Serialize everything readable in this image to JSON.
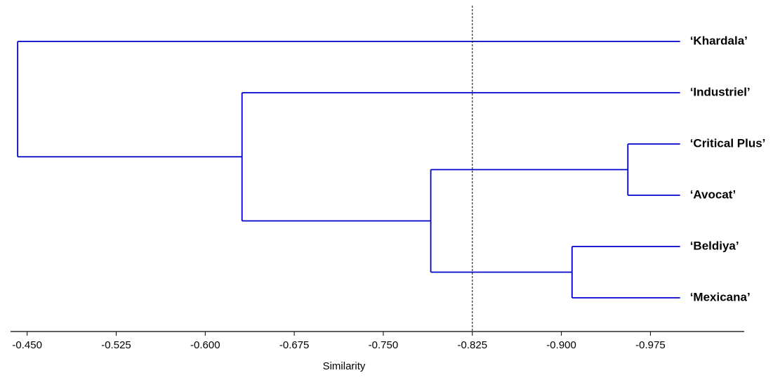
{
  "chart_data": {
    "type": "dendrogram",
    "xlabel": "Similarity",
    "leaves": [
      "‘Khardala’",
      "‘Industriel’",
      "‘Critical Plus’",
      "‘Avocat’",
      "‘Beldiya’",
      "‘Mexicana’"
    ],
    "leaf_value": -1.0,
    "merges": [
      [
        2,
        3
      ],
      [
        4,
        5
      ],
      [
        6,
        7
      ],
      [
        1,
        8
      ],
      [
        0,
        9
      ]
    ],
    "heights": [
      -0.956,
      -0.909,
      -0.79,
      -0.631,
      -0.442
    ],
    "cutoff": -0.825,
    "color": "#0000cc",
    "xlim": [
      -0.436,
      -1.054
    ],
    "xticks": [
      {
        "value": -0.45,
        "label": "-0.450"
      },
      {
        "value": -0.525,
        "label": "-0.525"
      },
      {
        "value": -0.6,
        "label": "-0.600"
      },
      {
        "value": -0.675,
        "label": "-0.675"
      },
      {
        "value": -0.75,
        "label": "-0.750"
      },
      {
        "value": -0.825,
        "label": "-0.825"
      },
      {
        "value": -0.9,
        "label": "-0.900"
      },
      {
        "value": -0.975,
        "label": "-0.975"
      }
    ]
  }
}
